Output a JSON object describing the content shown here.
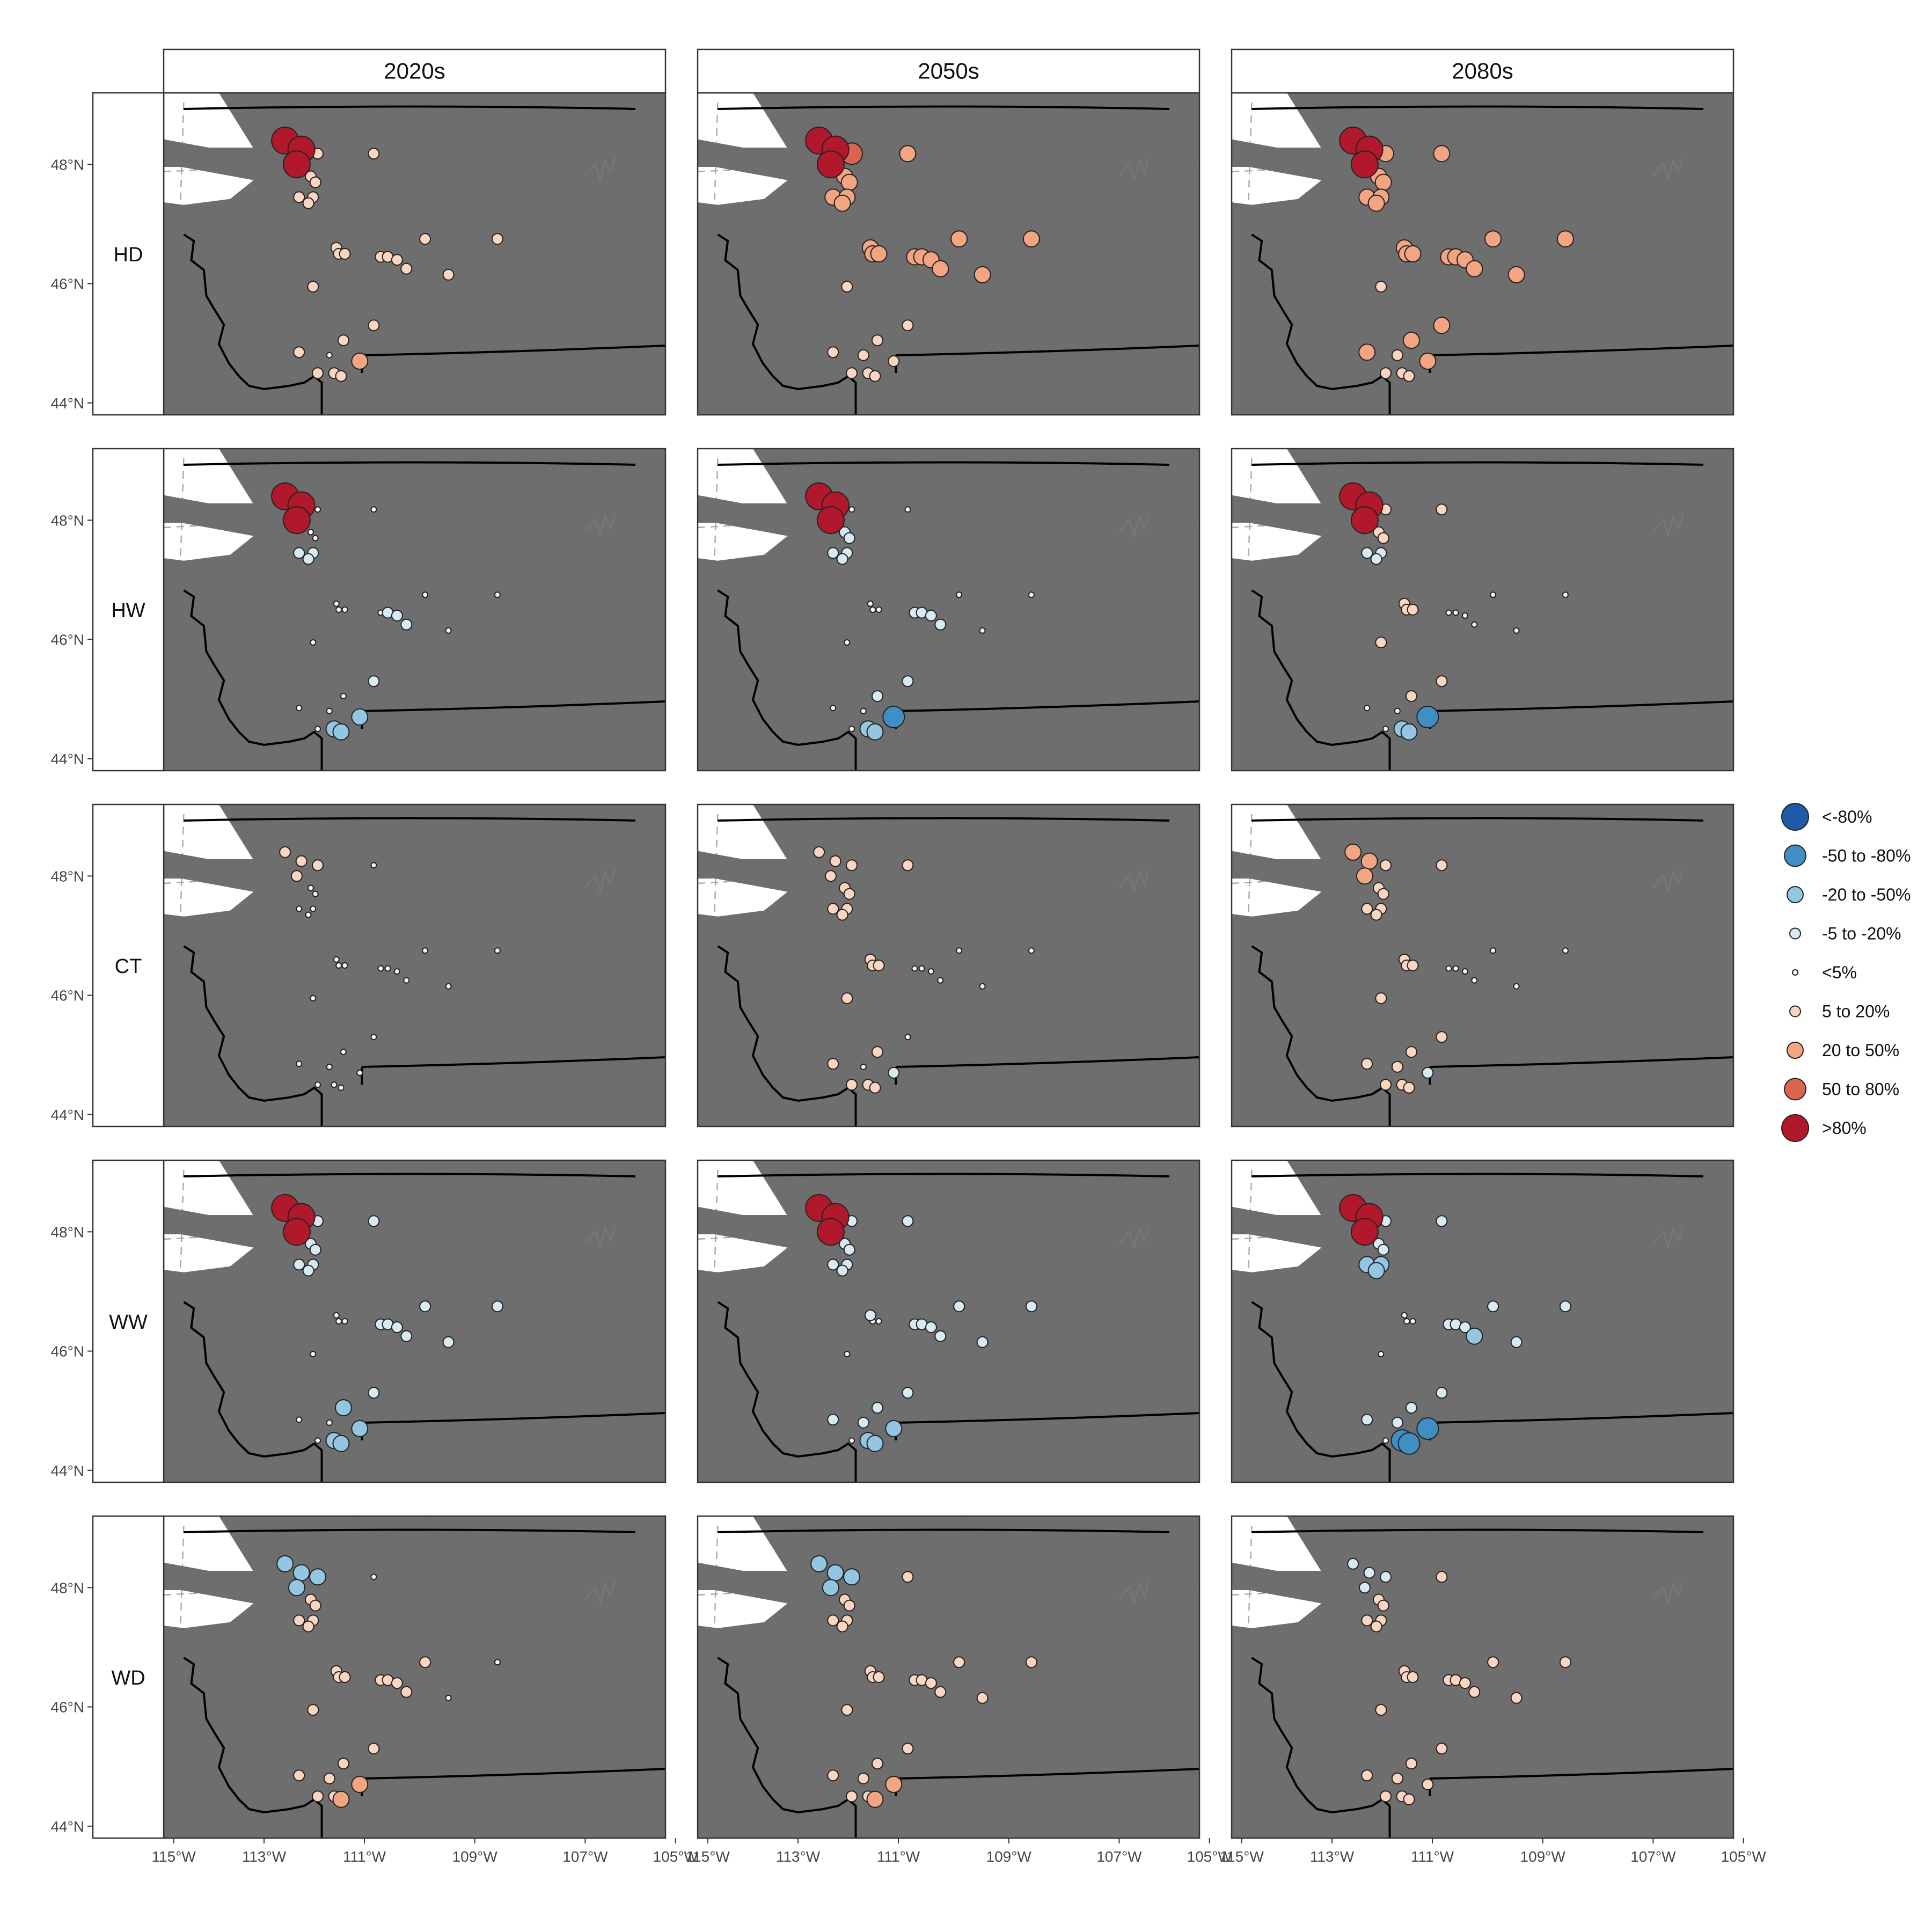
{
  "columns": [
    "2020s",
    "2050s",
    "2080s"
  ],
  "rows": [
    "HD",
    "HW",
    "CT",
    "WW",
    "WD"
  ],
  "lat_labels": [
    "48°N",
    "46°N",
    "44°N"
  ],
  "lon_labels": [
    "115°W",
    "113°W",
    "111°W",
    "109°W",
    "107°W",
    "105°W"
  ],
  "legend": [
    {
      "label": "<-80%",
      "color": "#1f5aa6",
      "size": 5
    },
    {
      "label": "-50 to -80%",
      "color": "#3f8fc5",
      "size": 4
    },
    {
      "label": "-20 to -50%",
      "color": "#93c6e0",
      "size": 3
    },
    {
      "label": "-5 to -20%",
      "color": "#d7eaf4",
      "size": 2
    },
    {
      "label": "<5%",
      "color": "#f7f7f7",
      "size": 1
    },
    {
      "label": "5 to 20%",
      "color": "#fbd5c0",
      "size": 2
    },
    {
      "label": "20 to 50%",
      "color": "#f3a581",
      "size": 3
    },
    {
      "label": "50 to 80%",
      "color": "#db6451",
      "size": 4
    },
    {
      "label": ">80%",
      "color": "#b2182b",
      "size": 5
    }
  ],
  "map_colors": {
    "basin": "#c8c8c8",
    "rivers": "#6e6e6e",
    "borders": "#000000",
    "graticule": "#a8a8a8"
  },
  "stations": [
    [
      -112.9,
      48.4
    ],
    [
      -112.55,
      48.25
    ],
    [
      -112.65,
      48.0
    ],
    [
      -112.2,
      48.18
    ],
    [
      -111.0,
      48.18
    ],
    [
      -112.35,
      47.8
    ],
    [
      -112.25,
      47.7
    ],
    [
      -112.6,
      47.45
    ],
    [
      -112.3,
      47.45
    ],
    [
      -112.4,
      47.35
    ],
    [
      -111.8,
      46.6
    ],
    [
      -111.75,
      46.5
    ],
    [
      -111.62,
      46.5
    ],
    [
      -112.3,
      45.95
    ],
    [
      -110.85,
      46.45
    ],
    [
      -110.7,
      46.45
    ],
    [
      -110.5,
      46.4
    ],
    [
      -110.3,
      46.25
    ],
    [
      -109.9,
      46.75
    ],
    [
      -109.4,
      46.15
    ],
    [
      -108.35,
      46.75
    ],
    [
      -111.0,
      45.3
    ],
    [
      -111.65,
      45.05
    ],
    [
      -111.95,
      44.8
    ],
    [
      -112.6,
      44.85
    ],
    [
      -111.85,
      44.5
    ],
    [
      -111.7,
      44.45
    ],
    [
      -111.3,
      44.7
    ],
    [
      -112.2,
      44.5
    ]
  ],
  "panels": [
    [
      [
        5,
        5,
        5,
        2,
        2,
        2,
        2,
        2,
        2,
        2,
        2,
        2,
        2,
        2,
        2,
        2,
        2,
        2,
        2,
        2,
        2,
        2,
        2,
        1,
        2,
        2,
        2,
        3,
        2
      ],
      [
        5,
        5,
        5,
        4,
        3,
        3,
        3,
        3,
        3,
        3,
        3,
        3,
        3,
        2,
        3,
        3,
        3,
        3,
        3,
        3,
        3,
        2,
        2,
        2,
        2,
        2,
        2,
        2,
        2
      ],
      [
        5,
        5,
        5,
        3,
        3,
        3,
        3,
        3,
        3,
        3,
        3,
        3,
        3,
        2,
        3,
        3,
        3,
        3,
        3,
        3,
        3,
        3,
        3,
        2,
        3,
        2,
        2,
        3,
        2
      ]
    ],
    [
      [
        5,
        5,
        5,
        1,
        1,
        1,
        1,
        -2,
        -2,
        -2,
        1,
        1,
        1,
        1,
        1,
        -2,
        -2,
        -2,
        1,
        1,
        1,
        -2,
        1,
        1,
        1,
        -3,
        -3,
        -3,
        1
      ],
      [
        5,
        5,
        5,
        1,
        1,
        -2,
        -2,
        -2,
        -2,
        -2,
        1,
        1,
        1,
        1,
        -2,
        -2,
        -2,
        -2,
        1,
        1,
        1,
        -2,
        -2,
        1,
        1,
        -3,
        -3,
        -4,
        1
      ],
      [
        5,
        5,
        5,
        2,
        2,
        2,
        2,
        -2,
        -2,
        -2,
        2,
        2,
        2,
        2,
        1,
        1,
        1,
        1,
        1,
        1,
        1,
        2,
        2,
        1,
        1,
        -3,
        -3,
        -4,
        1
      ]
    ],
    [
      [
        2,
        2,
        2,
        2,
        1,
        1,
        1,
        1,
        1,
        1,
        1,
        1,
        1,
        1,
        1,
        1,
        1,
        1,
        1,
        1,
        1,
        1,
        1,
        1,
        1,
        1,
        1,
        1,
        1
      ],
      [
        2,
        2,
        2,
        2,
        2,
        2,
        2,
        2,
        2,
        2,
        2,
        2,
        2,
        2,
        1,
        1,
        1,
        1,
        1,
        1,
        1,
        1,
        2,
        1,
        2,
        2,
        2,
        -2,
        2
      ],
      [
        3,
        3,
        3,
        2,
        2,
        2,
        2,
        2,
        2,
        2,
        2,
        2,
        2,
        2,
        1,
        1,
        1,
        1,
        1,
        1,
        1,
        2,
        2,
        2,
        2,
        2,
        2,
        -2,
        2
      ]
    ],
    [
      [
        5,
        5,
        5,
        -2,
        -2,
        -2,
        -2,
        -2,
        -2,
        -2,
        1,
        1,
        1,
        1,
        -2,
        -2,
        -2,
        -2,
        -2,
        -2,
        -2,
        -2,
        -3,
        1,
        1,
        -3,
        -3,
        -3,
        1
      ],
      [
        5,
        5,
        5,
        -2,
        -2,
        -2,
        -2,
        -2,
        -2,
        -2,
        -2,
        1,
        1,
        1,
        -2,
        -2,
        -2,
        -2,
        -2,
        -2,
        -2,
        -2,
        -2,
        -2,
        -2,
        -3,
        -3,
        -3,
        1
      ],
      [
        5,
        5,
        5,
        -2,
        -2,
        -2,
        -2,
        -3,
        -3,
        -3,
        1,
        1,
        1,
        1,
        -2,
        -2,
        -2,
        -3,
        -2,
        -2,
        -2,
        -2,
        -2,
        -2,
        -2,
        -4,
        -4,
        -4,
        1
      ]
    ],
    [
      [
        -3,
        -3,
        -3,
        -3,
        1,
        2,
        2,
        2,
        2,
        2,
        2,
        2,
        2,
        2,
        2,
        2,
        2,
        2,
        2,
        1,
        1,
        2,
        2,
        2,
        2,
        2,
        3,
        3,
        2
      ],
      [
        -3,
        -3,
        -3,
        -3,
        2,
        2,
        2,
        2,
        2,
        2,
        2,
        2,
        2,
        2,
        2,
        2,
        2,
        2,
        2,
        2,
        2,
        2,
        2,
        2,
        2,
        2,
        3,
        3,
        2
      ],
      [
        -2,
        -2,
        -2,
        -2,
        2,
        2,
        2,
        2,
        2,
        2,
        2,
        2,
        2,
        2,
        2,
        2,
        2,
        2,
        2,
        2,
        2,
        2,
        2,
        2,
        2,
        2,
        2,
        2,
        2
      ]
    ]
  ]
}
